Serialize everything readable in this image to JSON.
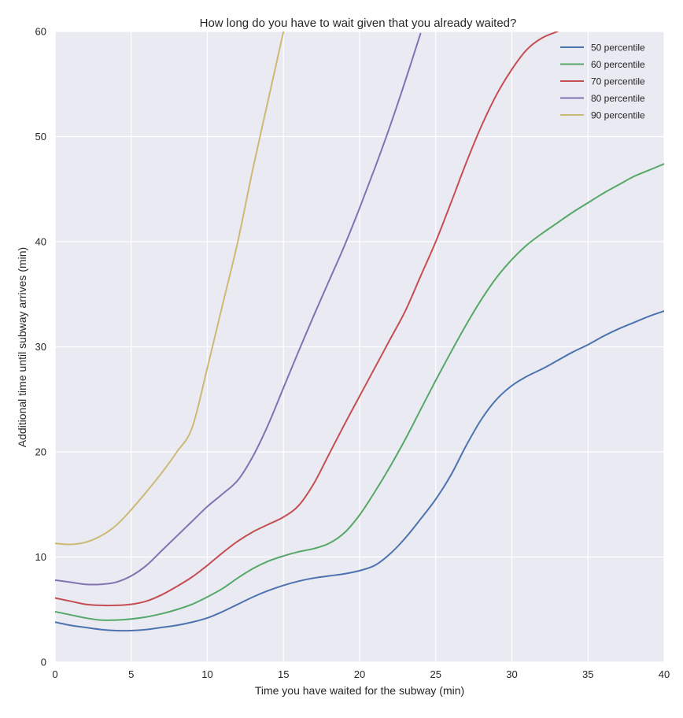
{
  "chart_data": {
    "type": "line",
    "title": "How long do you have to wait given that you already waited?",
    "xlabel": "Time you have waited for the subway (min)",
    "ylabel": "Additional time until subway arrives (min)",
    "xlim": [
      0,
      40
    ],
    "ylim": [
      0,
      60
    ],
    "xticks": [
      0,
      5,
      10,
      15,
      20,
      25,
      30,
      35,
      40
    ],
    "yticks": [
      0,
      10,
      20,
      30,
      40,
      50,
      60
    ],
    "grid": true,
    "legend_position": "top-right",
    "series": [
      {
        "name": "50 percentile",
        "color": "#4c72b0",
        "x": [
          0,
          1,
          2,
          3,
          4,
          5,
          6,
          7,
          8,
          9,
          10,
          11,
          12,
          13,
          14,
          15,
          16,
          17,
          18,
          19,
          20,
          21,
          22,
          23,
          24,
          25,
          26,
          27,
          28,
          29,
          30,
          31,
          32,
          33,
          34,
          35,
          36,
          37,
          38,
          39,
          40
        ],
        "y": [
          3.8,
          3.5,
          3.3,
          3.1,
          3.0,
          3.0,
          3.1,
          3.3,
          3.5,
          3.8,
          4.2,
          4.8,
          5.5,
          6.2,
          6.8,
          7.3,
          7.7,
          8.0,
          8.2,
          8.4,
          8.7,
          9.2,
          10.3,
          11.8,
          13.6,
          15.5,
          17.8,
          20.6,
          23.1,
          25.0,
          26.3,
          27.2,
          27.9,
          28.7,
          29.5,
          30.2,
          31.0,
          31.7,
          32.3,
          32.9,
          33.4
        ]
      },
      {
        "name": "60 percentile",
        "color": "#55a868",
        "x": [
          0,
          1,
          2,
          3,
          4,
          5,
          6,
          7,
          8,
          9,
          10,
          11,
          12,
          13,
          14,
          15,
          16,
          17,
          18,
          19,
          20,
          21,
          22,
          23,
          24,
          25,
          26,
          27,
          28,
          29,
          30,
          31,
          32,
          33,
          34,
          35,
          36,
          37,
          38,
          39,
          40
        ],
        "y": [
          4.8,
          4.5,
          4.2,
          4.0,
          4.0,
          4.1,
          4.3,
          4.6,
          5.0,
          5.5,
          6.2,
          7.0,
          8.0,
          8.9,
          9.6,
          10.1,
          10.5,
          10.8,
          11.3,
          12.3,
          14.0,
          16.2,
          18.6,
          21.2,
          24.0,
          26.8,
          29.5,
          32.1,
          34.5,
          36.6,
          38.3,
          39.7,
          40.8,
          41.8,
          42.8,
          43.7,
          44.6,
          45.4,
          46.2,
          46.8,
          47.4
        ]
      },
      {
        "name": "70 percentile",
        "color": "#c44e52",
        "x": [
          0,
          1,
          2,
          3,
          4,
          5,
          6,
          7,
          8,
          9,
          10,
          11,
          12,
          13,
          14,
          15,
          16,
          17,
          18,
          19,
          20,
          21,
          22,
          23,
          24,
          25,
          26,
          27,
          28,
          29,
          30,
          31,
          32,
          33
        ],
        "y": [
          6.1,
          5.8,
          5.5,
          5.4,
          5.4,
          5.5,
          5.8,
          6.4,
          7.2,
          8.1,
          9.2,
          10.4,
          11.5,
          12.4,
          13.1,
          13.8,
          14.9,
          17.0,
          19.8,
          22.6,
          25.3,
          28.0,
          30.7,
          33.4,
          36.7,
          40.0,
          43.7,
          47.5,
          51.0,
          54.0,
          56.4,
          58.3,
          59.4,
          60.0
        ]
      },
      {
        "name": "80 percentile",
        "color": "#8172b2",
        "x": [
          0,
          1,
          2,
          3,
          4,
          5,
          6,
          7,
          8,
          9,
          10,
          11,
          12,
          13,
          14,
          15,
          16,
          17,
          18,
          19,
          20,
          21,
          22,
          23,
          24
        ],
        "y": [
          7.8,
          7.6,
          7.4,
          7.4,
          7.6,
          8.2,
          9.2,
          10.6,
          12.0,
          13.4,
          14.8,
          16.0,
          17.3,
          19.6,
          22.6,
          26.1,
          29.6,
          33.0,
          36.3,
          39.6,
          43.2,
          47.0,
          51.0,
          55.3,
          59.8
        ]
      },
      {
        "name": "90 percentile",
        "color": "#ccb974",
        "x": [
          0,
          1,
          2,
          3,
          4,
          5,
          6,
          7,
          8,
          9,
          10,
          11,
          12,
          13,
          14,
          15
        ],
        "y": [
          11.3,
          11.2,
          11.4,
          12.0,
          13.0,
          14.5,
          16.2,
          18.0,
          20.0,
          22.3,
          28.0,
          34.0,
          40.0,
          47.0,
          53.5,
          60.0
        ]
      }
    ]
  }
}
